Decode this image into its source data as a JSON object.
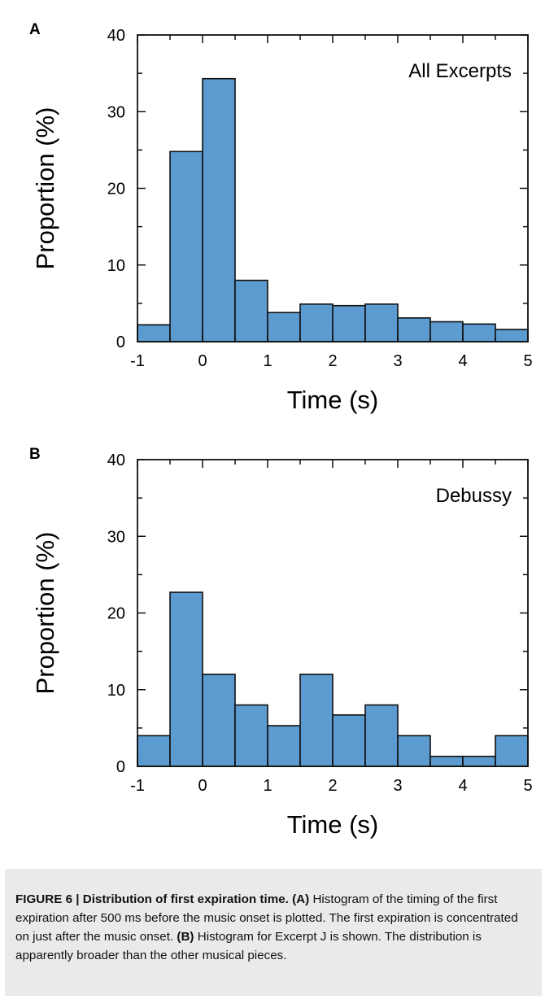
{
  "panels": [
    {
      "letter": "A"
    },
    {
      "letter": "B"
    }
  ],
  "chart_data": [
    {
      "type": "bar",
      "panel": "A",
      "annotation": "All Excerpts",
      "xlabel": "Time (s)",
      "ylabel": "Proportion (%)",
      "xlim": [
        -1,
        5
      ],
      "ylim": [
        0,
        40
      ],
      "xticks": [
        -1,
        0,
        1,
        2,
        3,
        4,
        5
      ],
      "yticks": [
        0,
        10,
        20,
        30,
        40
      ],
      "bin_width": 0.5,
      "bin_starts": [
        -1,
        -0.5,
        0,
        0.5,
        1,
        1.5,
        2,
        2.5,
        3,
        3.5,
        4,
        4.5
      ],
      "values": [
        2.2,
        24.8,
        34.3,
        8.0,
        3.8,
        4.9,
        4.7,
        4.9,
        3.1,
        2.6,
        2.3,
        1.6
      ],
      "bar_color": "#5b9bd0",
      "grid": false
    },
    {
      "type": "bar",
      "panel": "B",
      "annotation": "Debussy",
      "xlabel": "Time (s)",
      "ylabel": "Proportion (%)",
      "xlim": [
        -1,
        5
      ],
      "ylim": [
        0,
        40
      ],
      "xticks": [
        -1,
        0,
        1,
        2,
        3,
        4,
        5
      ],
      "yticks": [
        0,
        10,
        20,
        30,
        40
      ],
      "bin_width": 0.5,
      "bin_starts": [
        -1,
        -0.5,
        0,
        0.5,
        1,
        1.5,
        2,
        2.5,
        3,
        3.5,
        4,
        4.5
      ],
      "values": [
        4.0,
        22.7,
        12.0,
        8.0,
        5.3,
        12.0,
        6.7,
        8.0,
        4.0,
        1.3,
        1.3,
        4.0
      ],
      "bar_color": "#5b9bd0",
      "grid": false
    }
  ],
  "caption": {
    "title": "FIGURE 6 | Distribution of first expiration time.",
    "a_label": "(A)",
    "a_text": "Histogram of the timing of the first expiration after 500 ms before the music onset is plotted. The first expiration is concentrated on just after the music onset.",
    "b_label": "(B)",
    "b_text": "Histogram for Excerpt J is shown. The distribution is apparently broader than the other musical pieces."
  }
}
